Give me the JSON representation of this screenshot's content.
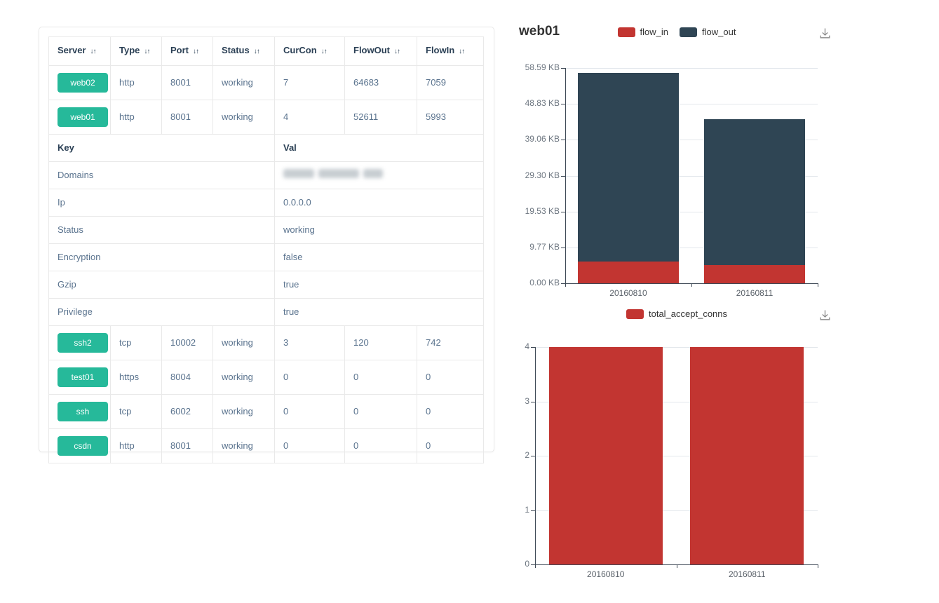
{
  "colors": {
    "badge_green": "#26b99a",
    "bar_red": "#c23531",
    "bar_slate": "#2f4554",
    "header_text": "#2a3f54",
    "body_text": "#5a738e",
    "icon_gray": "#8a8a8a"
  },
  "server_table": {
    "columns": [
      {
        "label": "Server",
        "sortable": true
      },
      {
        "label": "Type",
        "sortable": true
      },
      {
        "label": "Port",
        "sortable": true
      },
      {
        "label": "Status",
        "sortable": true
      },
      {
        "label": "CurCon",
        "sortable": true
      },
      {
        "label": "FlowOut",
        "sortable": true
      },
      {
        "label": "FlowIn",
        "sortable": true
      }
    ],
    "sort_icon": "↓↑",
    "top_rows": [
      {
        "server": "web02",
        "type": "http",
        "port": "8001",
        "status": "working",
        "curcon": "7",
        "flowout": "64683",
        "flowin": "7059"
      },
      {
        "server": "web01",
        "type": "http",
        "port": "8001",
        "status": "working",
        "curcon": "4",
        "flowout": "52611",
        "flowin": "5993"
      }
    ],
    "details": {
      "header": {
        "key": "Key",
        "val": "Val"
      },
      "rows": [
        {
          "key": "Domains",
          "value": "",
          "redacted": true
        },
        {
          "key": "Ip",
          "value": "0.0.0.0"
        },
        {
          "key": "Status",
          "value": "working"
        },
        {
          "key": "Encryption",
          "value": "false"
        },
        {
          "key": "Gzip",
          "value": "true"
        },
        {
          "key": "Privilege",
          "value": "true"
        }
      ]
    },
    "bottom_rows": [
      {
        "server": "ssh2",
        "type": "tcp",
        "port": "10002",
        "status": "working",
        "curcon": "3",
        "flowout": "120",
        "flowin": "742"
      },
      {
        "server": "test01",
        "type": "https",
        "port": "8004",
        "status": "working",
        "curcon": "0",
        "flowout": "0",
        "flowin": "0"
      },
      {
        "server": "ssh",
        "type": "tcp",
        "port": "6002",
        "status": "working",
        "curcon": "0",
        "flowout": "0",
        "flowin": "0"
      },
      {
        "server": "csdn",
        "type": "http",
        "port": "8001",
        "status": "working",
        "curcon": "0",
        "flowout": "0",
        "flowin": "0"
      }
    ]
  },
  "chart_data": [
    {
      "type": "bar",
      "stacked": true,
      "title": "web01",
      "categories": [
        "20160810",
        "20160811"
      ],
      "series": [
        {
          "name": "flow_in",
          "color": "#c23531",
          "values": [
            5.9,
            4.9
          ]
        },
        {
          "name": "flow_out",
          "color": "#2f4554",
          "values": [
            51.4,
            39.8
          ]
        }
      ],
      "unit": "KB",
      "ylim": [
        0,
        58.59
      ],
      "y_tick_labels": [
        "0.00 KB",
        "9.77 KB",
        "19.53 KB",
        "29.30 KB",
        "39.06 KB",
        "48.83 KB",
        "58.59 KB"
      ],
      "legend_position": "top",
      "grid": true
    },
    {
      "type": "bar",
      "stacked": false,
      "title": "",
      "categories": [
        "20160810",
        "20160811"
      ],
      "series": [
        {
          "name": "total_accept_conns",
          "color": "#c23531",
          "values": [
            4,
            4
          ]
        }
      ],
      "ylim": [
        0,
        4
      ],
      "y_tick_labels": [
        "0",
        "1",
        "2",
        "3",
        "4"
      ],
      "legend_position": "top",
      "grid": true
    }
  ]
}
